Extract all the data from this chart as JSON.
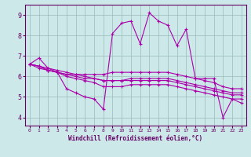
{
  "title": "",
  "xlabel": "Windchill (Refroidissement éolien,°C)",
  "ylabel": "",
  "bg_color": "#cce8e8",
  "line_color": "#aa00aa",
  "grid_color": "#99bbbb",
  "xlim": [
    -0.5,
    23.5
  ],
  "ylim": [
    3.6,
    9.5
  ],
  "xticks": [
    0,
    1,
    2,
    3,
    4,
    5,
    6,
    7,
    8,
    9,
    10,
    11,
    12,
    13,
    14,
    15,
    16,
    17,
    18,
    19,
    20,
    21,
    22,
    23
  ],
  "yticks": [
    4,
    5,
    6,
    7,
    8,
    9
  ],
  "lines": [
    [
      6.6,
      6.9,
      6.4,
      6.2,
      5.4,
      5.2,
      5.0,
      4.9,
      4.4,
      8.1,
      8.6,
      8.7,
      7.6,
      9.1,
      8.7,
      8.5,
      7.5,
      8.3,
      5.9,
      5.9,
      5.9,
      4.0,
      4.9,
      4.7
    ],
    [
      6.6,
      6.4,
      6.3,
      6.2,
      6.1,
      6.1,
      6.1,
      6.1,
      6.1,
      6.2,
      6.2,
      6.2,
      6.2,
      6.2,
      6.2,
      6.2,
      6.1,
      6.0,
      5.9,
      5.8,
      5.7,
      5.5,
      5.4,
      5.4
    ],
    [
      6.6,
      6.5,
      6.4,
      6.3,
      6.2,
      6.1,
      6.0,
      5.9,
      5.8,
      5.8,
      5.8,
      5.9,
      5.9,
      5.9,
      5.9,
      5.9,
      5.8,
      5.7,
      5.6,
      5.5,
      5.4,
      5.3,
      5.2,
      5.2
    ],
    [
      6.6,
      6.5,
      6.3,
      6.2,
      6.0,
      5.9,
      5.8,
      5.7,
      5.5,
      5.5,
      5.5,
      5.6,
      5.6,
      5.6,
      5.6,
      5.6,
      5.5,
      5.4,
      5.3,
      5.2,
      5.1,
      5.0,
      4.9,
      4.9
    ],
    [
      6.6,
      6.5,
      6.3,
      6.2,
      6.1,
      6.0,
      5.9,
      5.9,
      5.8,
      5.8,
      5.8,
      5.8,
      5.8,
      5.8,
      5.8,
      5.8,
      5.7,
      5.6,
      5.5,
      5.4,
      5.3,
      5.2,
      5.1,
      5.1
    ]
  ]
}
